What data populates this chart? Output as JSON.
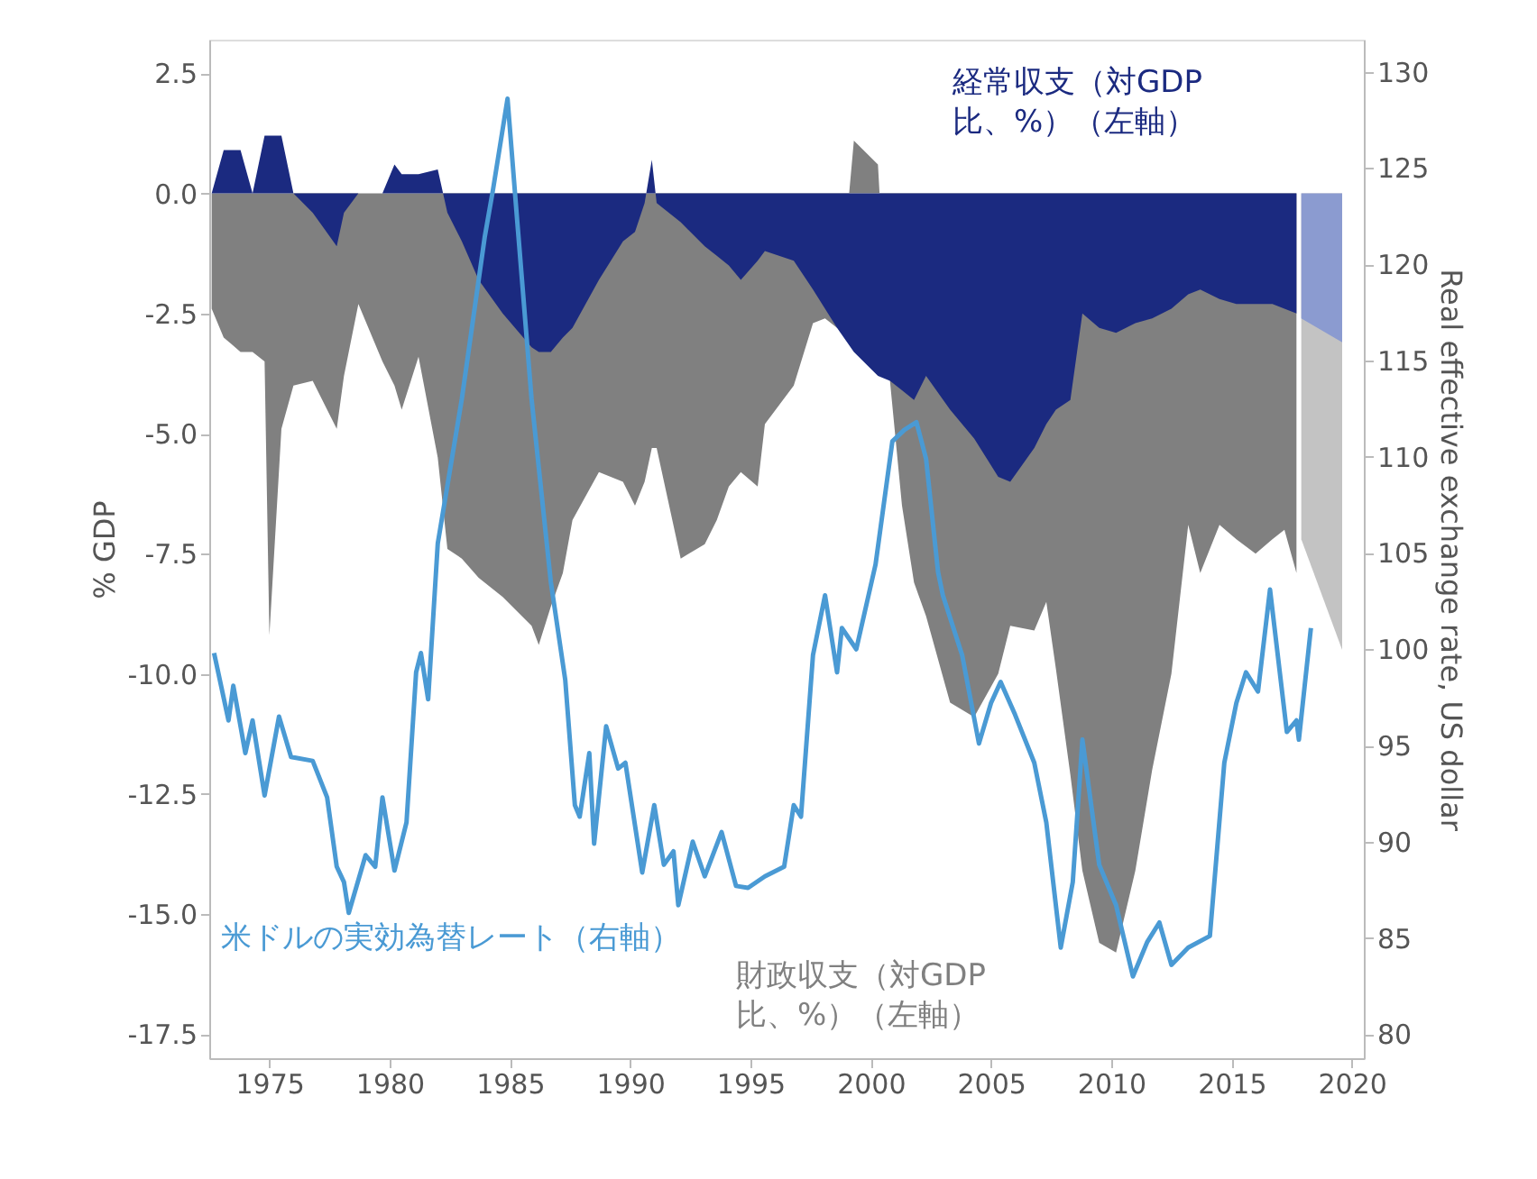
{
  "chart_data": {
    "type": "area",
    "ylabel": "% GDP",
    "y2label": "Real effective exchange rate, US dollar",
    "xlim": [
      1972.5,
      2020.5
    ],
    "xticks": [
      1975,
      1980,
      1985,
      1990,
      1995,
      2000,
      2005,
      2010,
      2015,
      2020
    ],
    "ylim": [
      -18,
      3.2
    ],
    "yticks": [
      2.5,
      {
        "value": 0,
        "label": "0.0"
      },
      -2.5,
      {
        "value": -5,
        "label": "-5.0"
      },
      -7.5,
      {
        "value": -10,
        "label": "-10.0"
      },
      -12.5,
      {
        "value": -15,
        "label": "-15.0"
      },
      -17.5
    ],
    "y2lim": [
      78.75,
      131.67
    ],
    "y2ticks": [
      80,
      85,
      90,
      95,
      100,
      105,
      110,
      115,
      120,
      125,
      130
    ],
    "series": [
      {
        "name": "財政収支（対GDP比、%）（左軸）",
        "color": "#808080",
        "x": [
          1972.6,
          1973.1,
          1973.8,
          1974.3,
          1974.8,
          1975.0,
          1975.5,
          1976.0,
          1976.8,
          1977.8,
          1978.1,
          1978.7,
          1979.7,
          1980.2,
          1980.5,
          1981.2,
          1982.0,
          1982.4,
          1983.0,
          1983.7,
          1984.7,
          1985.9,
          1986.2,
          1986.7,
          1987.2,
          1987.6,
          1988.7,
          1989.7,
          1990.2,
          1990.6,
          1990.9,
          1991.1,
          1992.1,
          1993.1,
          1993.6,
          1994.1,
          1994.6,
          1995.3,
          1995.6,
          1996.8,
          1997.6,
          1998.1,
          1998.6,
          1999.3,
          2000.3,
          2000.8,
          2001.3,
          2001.8,
          2002.3,
          2003.3,
          2004.3,
          2005.3,
          2005.8,
          2006.8,
          2007.3,
          2007.7,
          2008.3,
          2008.8,
          2009.5,
          2010.2,
          2011.0,
          2011.7,
          2012.5,
          2013.2,
          2013.7,
          2014.5,
          2015.2,
          2016.0,
          2016.7,
          2017.2,
          2017.7
        ],
        "values": [
          -2.4,
          -3.0,
          -3.3,
          -3.3,
          -3.5,
          -9.2,
          -4.9,
          -4.0,
          -3.9,
          -4.9,
          -3.8,
          -2.3,
          -3.5,
          -4.0,
          -4.5,
          -3.4,
          -5.5,
          -7.4,
          -7.6,
          -8.0,
          -8.4,
          -9.0,
          -9.4,
          -8.6,
          -7.9,
          -6.8,
          -5.8,
          -6.0,
          -6.5,
          -6.0,
          -5.3,
          -5.3,
          -7.6,
          -7.3,
          -6.8,
          -6.1,
          -5.8,
          -6.1,
          -4.8,
          -4.0,
          -2.7,
          -2.6,
          -2.8,
          1.1,
          0.6,
          -3.9,
          -6.5,
          -8.1,
          -8.8,
          -10.6,
          -10.9,
          -10.0,
          -9.0,
          -9.1,
          -8.5,
          -9.9,
          -12.1,
          -14.1,
          -15.6,
          -15.8,
          -14.1,
          -12.0,
          -10.0,
          -6.9,
          -7.9,
          -6.9,
          -7.2,
          -7.5,
          -7.2,
          -7.0,
          -7.9
        ]
      },
      {
        "name": "経常収支（対GDP比、%）（左軸）",
        "color": "#1b2a80",
        "x": [
          1972.6,
          1973.1,
          1973.8,
          1974.3,
          1974.8,
          1975.0,
          1975.5,
          1976.0,
          1976.8,
          1977.8,
          1978.1,
          1978.7,
          1979.7,
          1980.2,
          1980.5,
          1981.2,
          1982.0,
          1982.4,
          1983.0,
          1983.7,
          1984.7,
          1985.9,
          1986.2,
          1986.7,
          1987.2,
          1987.6,
          1988.7,
          1989.7,
          1990.2,
          1990.6,
          1990.9,
          1991.1,
          1992.1,
          1993.1,
          1993.6,
          1994.1,
          1994.6,
          1995.3,
          1995.6,
          1996.8,
          1997.6,
          1998.1,
          1998.6,
          1999.3,
          2000.3,
          2000.8,
          2001.3,
          2001.8,
          2002.3,
          2003.3,
          2004.3,
          2005.3,
          2005.8,
          2006.8,
          2007.3,
          2007.7,
          2008.3,
          2008.8,
          2009.5,
          2010.2,
          2011.0,
          2011.7,
          2012.5,
          2013.2,
          2013.7,
          2014.5,
          2015.2,
          2016.0,
          2016.7,
          2017.2,
          2017.7
        ],
        "values": [
          0.0,
          0.9,
          0.9,
          0.0,
          1.2,
          1.2,
          1.2,
          0.0,
          -0.4,
          -1.1,
          -0.4,
          0.0,
          0.0,
          0.6,
          0.4,
          0.4,
          0.5,
          -0.4,
          -1.0,
          -1.8,
          -2.5,
          -3.2,
          -3.3,
          -3.3,
          -3.0,
          -2.8,
          -1.8,
          -1.0,
          -0.8,
          -0.2,
          0.7,
          -0.2,
          -0.6,
          -1.1,
          -1.3,
          -1.5,
          -1.8,
          -1.4,
          -1.2,
          -1.4,
          -2.0,
          -2.4,
          -2.8,
          -3.3,
          -3.8,
          -3.9,
          -4.1,
          -4.3,
          -3.8,
          -4.5,
          -5.1,
          -5.9,
          -6.0,
          -5.3,
          -4.8,
          -4.5,
          -4.3,
          -2.5,
          -2.8,
          -2.9,
          -2.7,
          -2.6,
          -2.4,
          -2.1,
          -2.0,
          -2.2,
          -2.3,
          -2.3,
          -2.3,
          -2.4,
          -2.5
        ]
      },
      {
        "color": "#c3c3c3",
        "x": [
          2017.9,
          2019.6
        ],
        "values": [
          -7.2,
          -9.5
        ]
      },
      {
        "color": "#8b9bd0",
        "x": [
          2017.9,
          2019.6
        ],
        "values": [
          -2.6,
          -3.1
        ]
      },
      {
        "name": "米ドルの実効為替レート（右軸）",
        "type": "line",
        "axis": "y2",
        "color": "#4a9ad4",
        "x": [
          1972.7,
          1973.3,
          1973.5,
          1974.0,
          1974.3,
          1974.8,
          1975.4,
          1975.9,
          1976.8,
          1977.4,
          1977.8,
          1978.1,
          1978.3,
          1979.0,
          1979.4,
          1979.7,
          1980.2,
          1980.7,
          1981.1,
          1981.3,
          1981.6,
          1982.0,
          1983.0,
          1983.95,
          1984.3,
          1984.9,
          1985.3,
          1985.9,
          1986.7,
          1987.3,
          1987.7,
          1987.9,
          1988.3,
          1988.5,
          1989.0,
          1989.5,
          1989.8,
          1990.5,
          1991.0,
          1991.4,
          1991.8,
          1992.0,
          1992.6,
          1993.1,
          1993.8,
          1994.4,
          1994.9,
          1995.6,
          1996.4,
          1996.8,
          1997.1,
          1997.6,
          1998.1,
          1998.6,
          1998.8,
          1999.4,
          2000.2,
          2000.9,
          2001.4,
          2001.9,
          2002.3,
          2002.8,
          2003.0,
          2003.8,
          2004.5,
          2005.0,
          2005.4,
          2006.0,
          2006.8,
          2007.3,
          2007.9,
          2008.4,
          2008.8,
          2009.5,
          2010.2,
          2010.9,
          2011.5,
          2012.0,
          2012.5,
          2013.2,
          2014.1,
          2014.7,
          2015.2,
          2015.6,
          2016.1,
          2016.6,
          2017.3,
          2017.7,
          2017.8,
          2018.3
        ],
        "values": [
          99.8,
          96.3,
          98.1,
          94.6,
          96.3,
          92.4,
          96.5,
          94.4,
          94.2,
          92.3,
          88.7,
          87.9,
          86.3,
          89.3,
          88.7,
          92.3,
          88.5,
          91.0,
          98.8,
          99.8,
          97.4,
          105.5,
          113.0,
          121.4,
          123.9,
          128.6,
          122.3,
          113.0,
          103.5,
          98.4,
          91.9,
          91.3,
          94.6,
          89.9,
          96.0,
          93.8,
          94.1,
          88.4,
          91.9,
          88.8,
          89.5,
          86.7,
          90.0,
          88.2,
          90.5,
          87.7,
          87.6,
          88.2,
          88.7,
          91.9,
          91.3,
          99.7,
          102.8,
          98.8,
          101.1,
          100.0,
          104.4,
          110.8,
          111.4,
          111.8,
          109.9,
          104.0,
          102.8,
          99.7,
          95.1,
          97.2,
          98.3,
          96.6,
          94.1,
          91.0,
          84.5,
          87.9,
          95.3,
          88.8,
          86.7,
          83.0,
          84.8,
          85.8,
          83.6,
          84.5,
          85.1,
          94.1,
          97.2,
          98.8,
          97.8,
          103.1,
          95.7,
          96.3,
          95.3,
          101.1
        ]
      }
    ]
  }
}
